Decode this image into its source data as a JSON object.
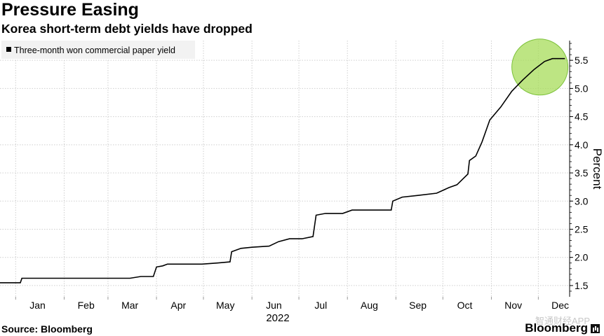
{
  "header": {
    "title": "Pressure Easing",
    "subtitle": "Korea short-term debt yields have dropped"
  },
  "footer": {
    "source": "Source: Bloomberg",
    "brand": "Bloomberg",
    "watermark": "智通财经APP"
  },
  "colors": {
    "line": "#000000",
    "highlight_fill": "#a7dc5a",
    "highlight_stroke": "#7cc13a",
    "grid": "#cfcfcf",
    "legend_bg": "#f2f2f2"
  },
  "chart_data": {
    "type": "line",
    "title": "Pressure Easing",
    "subtitle": "Korea short-term debt yields have dropped",
    "xlabel": "2022",
    "ylabel": "Percent",
    "x_tick_labels": [
      "Jan",
      "Feb",
      "Mar",
      "Apr",
      "May",
      "Jun",
      "Jul",
      "Aug",
      "Sep",
      "Oct",
      "Nov",
      "Dec"
    ],
    "y_tick_labels": [
      "1.5",
      "2.0",
      "2.5",
      "3.0",
      "3.5",
      "4.0",
      "4.5",
      "5.0",
      "5.5"
    ],
    "ylim": [
      1.3,
      5.85
    ],
    "xlim": [
      "2021-12-22",
      "2022-12-21"
    ],
    "grid": true,
    "legend_position": "top-left",
    "annotation": "highlight circle around the latest values (late Nov to Dec)",
    "series": [
      {
        "name": "Three-month won commercial paper yield",
        "points": [
          [
            "2021-12-22",
            1.55
          ],
          [
            "2022-01-04",
            1.55
          ],
          [
            "2022-01-05",
            1.63
          ],
          [
            "2022-03-15",
            1.63
          ],
          [
            "2022-03-22",
            1.66
          ],
          [
            "2022-03-30",
            1.66
          ],
          [
            "2022-04-01",
            1.83
          ],
          [
            "2022-04-05",
            1.85
          ],
          [
            "2022-04-08",
            1.88
          ],
          [
            "2022-04-30",
            1.88
          ],
          [
            "2022-05-10",
            1.9
          ],
          [
            "2022-05-18",
            1.92
          ],
          [
            "2022-05-19",
            2.1
          ],
          [
            "2022-05-25",
            2.16
          ],
          [
            "2022-06-01",
            2.18
          ],
          [
            "2022-06-12",
            2.2
          ],
          [
            "2022-06-18",
            2.28
          ],
          [
            "2022-06-25",
            2.33
          ],
          [
            "2022-07-03",
            2.33
          ],
          [
            "2022-07-10",
            2.37
          ],
          [
            "2022-07-12",
            2.75
          ],
          [
            "2022-07-18",
            2.78
          ],
          [
            "2022-07-29",
            2.78
          ],
          [
            "2022-08-04",
            2.84
          ],
          [
            "2022-08-29",
            2.84
          ],
          [
            "2022-08-30",
            3.0
          ],
          [
            "2022-09-05",
            3.07
          ],
          [
            "2022-09-15",
            3.1
          ],
          [
            "2022-09-27",
            3.14
          ],
          [
            "2022-10-05",
            3.24
          ],
          [
            "2022-10-10",
            3.29
          ],
          [
            "2022-10-17",
            3.48
          ],
          [
            "2022-10-18",
            3.72
          ],
          [
            "2022-10-22",
            3.8
          ],
          [
            "2022-10-26",
            4.05
          ],
          [
            "2022-10-31",
            4.44
          ],
          [
            "2022-11-07",
            4.67
          ],
          [
            "2022-11-14",
            4.95
          ],
          [
            "2022-11-21",
            5.15
          ],
          [
            "2022-11-28",
            5.33
          ],
          [
            "2022-12-05",
            5.48
          ],
          [
            "2022-12-10",
            5.53
          ],
          [
            "2022-12-18",
            5.53
          ]
        ]
      }
    ]
  }
}
